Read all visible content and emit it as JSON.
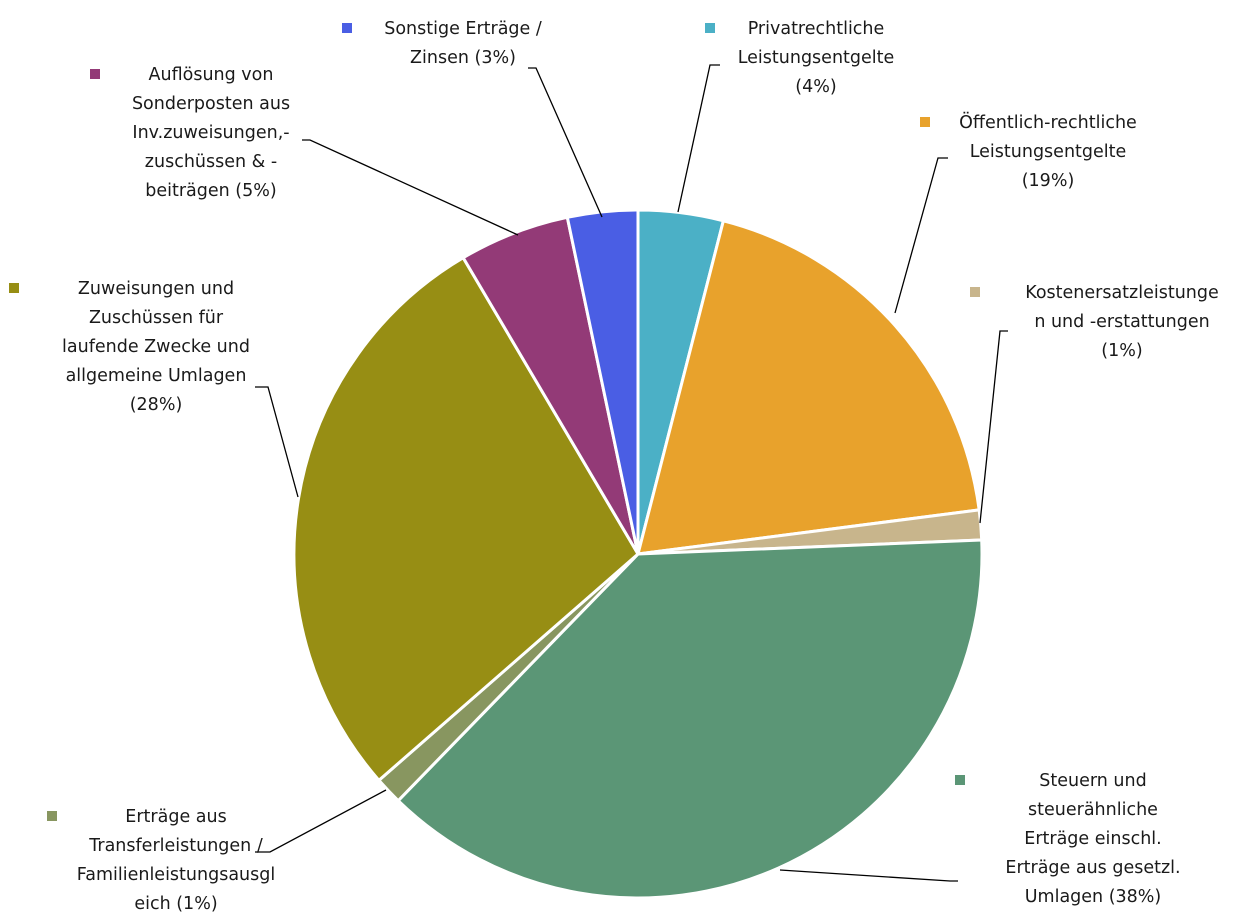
{
  "chart_data": {
    "type": "pie",
    "title": "",
    "slices": [
      {
        "label": [
          "Privatrechtliche",
          "Leistungsentgelte",
          "(4%)"
        ],
        "value": 4,
        "color": "#4BB0C6"
      },
      {
        "label": [
          "Öffentlich-rechtliche",
          "Leistungsentgelte",
          "(19%)"
        ],
        "value": 19,
        "color": "#E8A22C"
      },
      {
        "label": [
          "Kostenersatzleistunge",
          "n und -erstattungen",
          "(1%)"
        ],
        "value": 1.4,
        "color": "#C8B58C"
      },
      {
        "label": [
          "Steuern und",
          "steuerähnliche",
          "Erträge einschl.",
          "Erträge aus gesetzl.",
          "Umlagen (38%)"
        ],
        "value": 38,
        "color": "#5B9676"
      },
      {
        "label": [
          "Erträge aus",
          "Transferleistungen /",
          "Familienleistungsausgl",
          "eich (1%)"
        ],
        "value": 1.3,
        "color": "#889660"
      },
      {
        "label": [
          "Zuweisungen und",
          "Zuschüssen für",
          "laufende Zwecke und",
          "allgemeine Umlagen",
          "(28%)"
        ],
        "value": 28,
        "color": "#978E14"
      },
      {
        "label": [
          "Auflösung von",
          "Sonderposten aus",
          "Inv.zuweisungen,-",
          "zuschüssen & -",
          "beiträgen (5%)"
        ],
        "value": 5.2,
        "color": "#933A77"
      },
      {
        "label": [
          "Sonstige Erträge /",
          "Zinsen (3%)"
        ],
        "value": 3.3,
        "color": "#4A5EE4"
      }
    ]
  }
}
